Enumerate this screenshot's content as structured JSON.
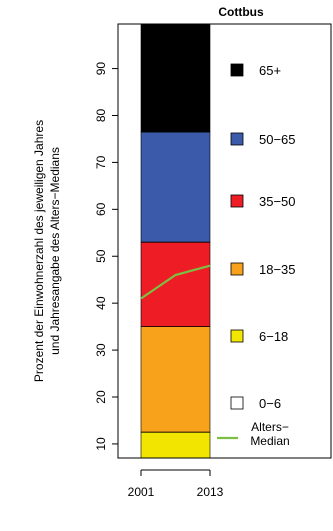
{
  "chart_data": {
    "type": "area",
    "title": "Cottbus",
    "ylabel_lines": [
      "Prozent der Einwohnerzahl des jeweiligen Jahres",
      "und Jahresangabe des Alters−Medians"
    ],
    "x_tick_labels": [
      "2001",
      "2013"
    ],
    "x": [
      2001,
      2013
    ],
    "ylim": [
      0,
      100
    ],
    "y_ticks": [
      10,
      20,
      30,
      40,
      50,
      60,
      70,
      80,
      90
    ],
    "series": [
      {
        "name": "0−6",
        "color": "#ffffff",
        "lower": [
          0,
          0
        ],
        "upper": [
          4.5,
          4.5
        ]
      },
      {
        "name": "6−18",
        "color": "#f2e600",
        "lower": [
          4.5,
          4.5
        ],
        "upper": [
          12.5,
          12.5
        ]
      },
      {
        "name": "18−35",
        "color": "#f7a21a",
        "lower": [
          12.5,
          12.5
        ],
        "upper": [
          35,
          35
        ]
      },
      {
        "name": "35−50",
        "color": "#ee1c25",
        "lower": [
          35,
          35
        ],
        "upper": [
          53,
          53
        ]
      },
      {
        "name": "50−65",
        "color": "#3b5aaa",
        "lower": [
          53,
          53
        ],
        "upper": [
          76.5,
          76.5
        ]
      },
      {
        "name": "65+",
        "color": "#000000",
        "lower": [
          76.5,
          76.5
        ],
        "upper": [
          100,
          100
        ]
      }
    ],
    "median": {
      "name": "Alters−Median",
      "label_lines": [
        "Alters−",
        "Median"
      ],
      "color": "#7dbf43",
      "x": [
        2001,
        2004,
        2007,
        2010,
        2013
      ],
      "y": [
        41,
        43.5,
        46,
        47,
        48
      ]
    },
    "legend_order": [
      "65+",
      "50−65",
      "35−50",
      "18−35",
      "6−18",
      "0−6"
    ],
    "legend_placement": "right"
  }
}
